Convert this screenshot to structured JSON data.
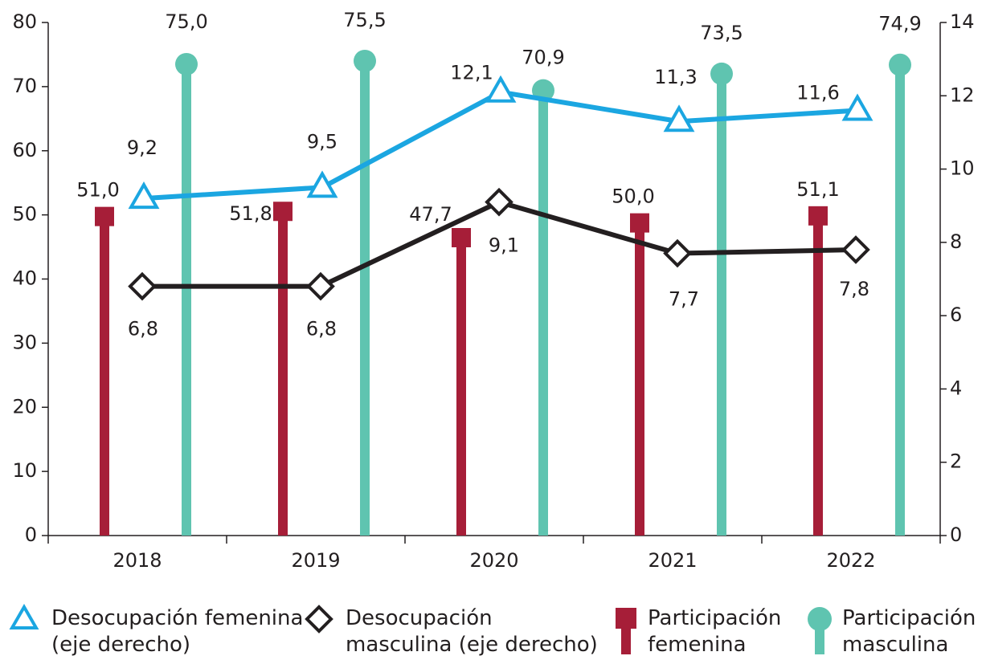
{
  "chart_data": {
    "type": "bar-line",
    "categories": [
      "2018",
      "2019",
      "2020",
      "2021",
      "2022"
    ],
    "ylim": [
      0,
      80
    ],
    "yticks": [
      0,
      10,
      20,
      30,
      40,
      50,
      60,
      70,
      80
    ],
    "y2lim": [
      0,
      14
    ],
    "y2ticks": [
      0,
      2,
      4,
      6,
      8,
      10,
      12,
      14
    ],
    "series": [
      {
        "name": "Desocupación femenina (eje derecho)",
        "type": "line",
        "axis": "y2",
        "color": "#1ba6e1",
        "marker": "triangle",
        "values": [
          9.2,
          9.5,
          12.1,
          11.3,
          11.6
        ],
        "value_labels": [
          "9,2",
          "9,5",
          "12,1",
          "11,3",
          "11,6"
        ]
      },
      {
        "name": "Desocupación masculina (eje derecho)",
        "type": "line",
        "axis": "y2",
        "color": "#231f20",
        "marker": "diamond",
        "values": [
          6.8,
          6.8,
          9.1,
          7.7,
          7.8
        ],
        "value_labels": [
          "6,8",
          "6,8",
          "9,1",
          "7,7",
          "7,8"
        ]
      },
      {
        "name": "Participación femenina",
        "type": "bar",
        "color": "#a61e38",
        "marker": "square",
        "values": [
          51.0,
          51.8,
          47.7,
          50.0,
          51.1
        ],
        "value_labels": [
          "51,0",
          "51,8",
          "47,7",
          "50,0",
          "51,1"
        ]
      },
      {
        "name": "Participación masculina",
        "type": "bar",
        "color": "#5fc4b0",
        "marker": "circle",
        "values": [
          75.0,
          75.5,
          70.9,
          73.5,
          74.9
        ],
        "value_labels": [
          "75,0",
          "75,5",
          "70,9",
          "73,5",
          "74,9"
        ]
      }
    ]
  }
}
